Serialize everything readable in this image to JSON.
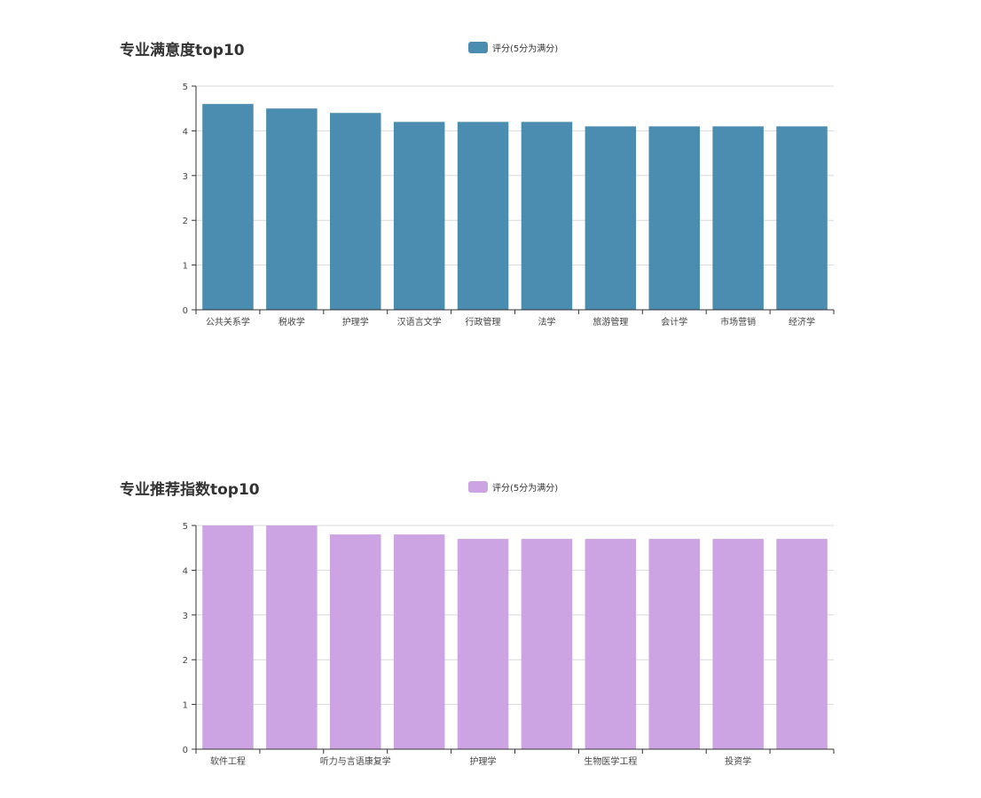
{
  "chart_data": [
    {
      "type": "bar",
      "title": "专业满意度top10",
      "legend": {
        "label": "评分(5分为满分)",
        "position": "top-center"
      },
      "color": "#4b8db0",
      "categories": [
        "公共关系学",
        "税收学",
        "护理学",
        "汉语言文学",
        "行政管理",
        "法学",
        "旅游管理",
        "会计学",
        "市场营销",
        "经济学"
      ],
      "category_labels_shown": [
        "公共关系学",
        "税收学",
        "护理学",
        "汉语言文学",
        "行政管理",
        "法学",
        "旅游管理",
        "会计学",
        "市场营销",
        "经济学"
      ],
      "series": [
        {
          "name": "评分(5分为满分)",
          "values": [
            4.6,
            4.5,
            4.4,
            4.2,
            4.2,
            4.2,
            4.1,
            4.1,
            4.1,
            4.1
          ]
        }
      ],
      "ylim": [
        0,
        5
      ],
      "yticks": [
        "0",
        "1",
        "2",
        "3",
        "4",
        "5"
      ],
      "grid": true
    },
    {
      "type": "bar",
      "title": "专业推荐指数top10",
      "legend": {
        "label": "评分(5分为满分)",
        "position": "top-center"
      },
      "color": "#cca4e3",
      "categories": [
        "软件工程",
        "",
        "听力与言语康复学",
        "",
        "护理学",
        "",
        "生物医学工程",
        "",
        "投资学",
        ""
      ],
      "category_labels_shown": [
        "软件工程",
        "",
        "听力与言语康复学",
        "",
        "护理学",
        "",
        "生物医学工程",
        "",
        "投资学",
        ""
      ],
      "series": [
        {
          "name": "评分(5分为满分)",
          "values": [
            5.0,
            5.0,
            4.8,
            4.8,
            4.7,
            4.7,
            4.7,
            4.7,
            4.7,
            4.7
          ]
        }
      ],
      "ylim": [
        0,
        5
      ],
      "yticks": [
        "0",
        "1",
        "2",
        "3",
        "4",
        "5"
      ],
      "grid": true
    }
  ]
}
